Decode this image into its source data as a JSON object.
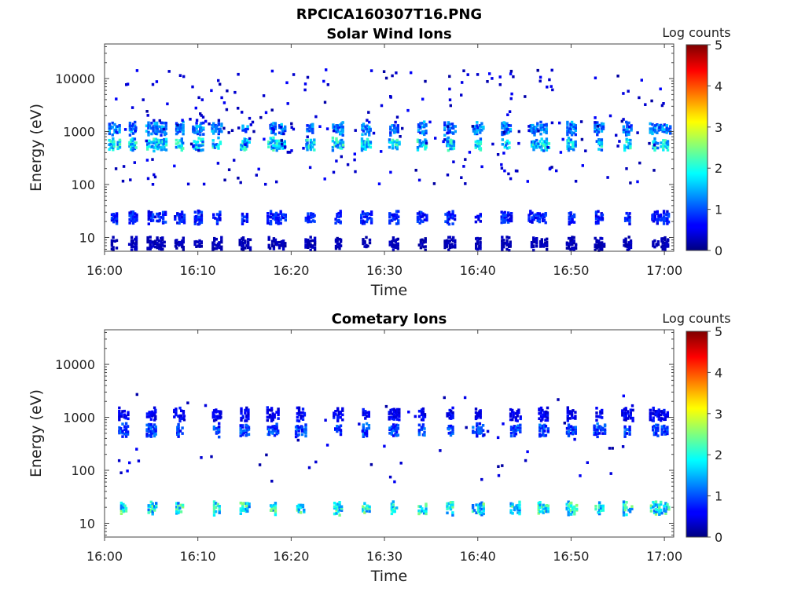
{
  "figure": {
    "title": "RPCICA160307T16.PNG"
  },
  "colorbar": {
    "label": "Log counts",
    "ticks": [
      "0",
      "1",
      "2",
      "3",
      "4",
      "5"
    ],
    "range": [
      0,
      5
    ],
    "colormap": "jet"
  },
  "chart_data": [
    {
      "type": "heatmap",
      "title": "Solar Wind Ions",
      "xlabel": "Time",
      "ylabel": "Energy (eV)",
      "xlim": [
        "16:00",
        "17:01"
      ],
      "xticks": [
        "16:00",
        "16:10",
        "16:20",
        "16:30",
        "16:40",
        "16:50",
        "17:00"
      ],
      "yscale": "log",
      "ylim": [
        5.5,
        45000
      ],
      "yticks": [
        "10",
        "100",
        "1000",
        "10000"
      ],
      "value_label": "Log counts",
      "value_range": [
        0,
        5
      ],
      "bands": [
        {
          "energy_eV": 600,
          "level": 1.8,
          "note": "main solar wind band"
        },
        {
          "energy_eV": 1200,
          "level": 1.3
        },
        {
          "energy_eV": 25,
          "level": 0.8
        },
        {
          "energy_eV": 8,
          "level": 0.3
        }
      ],
      "burst_times": [
        "16:01",
        "16:03",
        "16:05",
        "16:06",
        "16:08",
        "16:10",
        "16:12",
        "16:15",
        "16:18",
        "16:19",
        "16:22",
        "16:25",
        "16:28",
        "16:31",
        "16:34",
        "16:37",
        "16:40",
        "16:43",
        "16:46",
        "16:47",
        "16:50",
        "16:53",
        "16:56",
        "16:59",
        "17:00"
      ],
      "scatter_range_eV": [
        100,
        15000
      ]
    },
    {
      "type": "heatmap",
      "title": "Cometary Ions",
      "xlabel": "Time",
      "ylabel": "Energy (eV)",
      "xlim": [
        "16:00",
        "17:01"
      ],
      "xticks": [
        "16:00",
        "16:10",
        "16:20",
        "16:30",
        "16:40",
        "16:50",
        "17:00"
      ],
      "yscale": "log",
      "ylim": [
        5.5,
        45000
      ],
      "yticks": [
        "10",
        "100",
        "1000",
        "10000"
      ],
      "value_label": "Log counts",
      "value_range": [
        0,
        5
      ],
      "bands": [
        {
          "energy_eV": 20,
          "level": 2.0,
          "note": "main cometary band"
        },
        {
          "energy_eV": 600,
          "level": 1.0
        },
        {
          "energy_eV": 1200,
          "level": 0.6
        }
      ],
      "burst_times": [
        "16:02",
        "16:05",
        "16:08",
        "16:12",
        "16:15",
        "16:18",
        "16:21",
        "16:25",
        "16:28",
        "16:31",
        "16:34",
        "16:37",
        "16:40",
        "16:44",
        "16:47",
        "16:50",
        "16:53",
        "16:56",
        "16:59",
        "17:00"
      ],
      "scatter_range_eV": [
        60,
        3000
      ]
    }
  ]
}
